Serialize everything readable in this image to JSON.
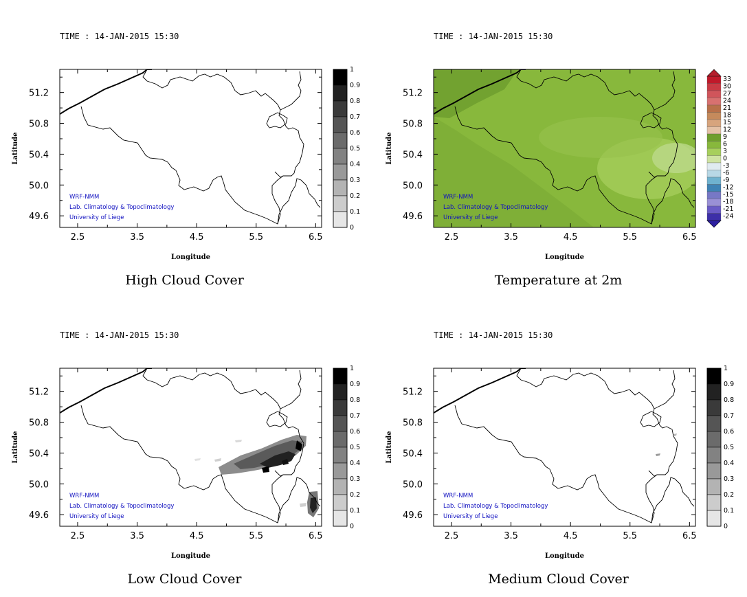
{
  "chart_data": [
    {
      "type": "heatmap",
      "panel": "top-left",
      "time_label": "TIME : 14-JAN-2015 15:30",
      "title": "High Cloud Cover",
      "xlabel": "Longitude",
      "ylabel": "Latitude",
      "xticks": [
        "2.5",
        "3.5",
        "4.5",
        "5.5",
        "6.5"
      ],
      "yticks": [
        "51.2",
        "50.8",
        "50.4",
        "50.0",
        "49.6"
      ],
      "xlim": [
        2.2,
        6.6
      ],
      "ylim": [
        49.45,
        51.5
      ],
      "colorbar": {
        "labels": [
          "1",
          "0.9",
          "0.8",
          "0.7",
          "0.6",
          "0.5",
          "0.4",
          "0.3",
          "0.2",
          "0.1",
          "0"
        ],
        "colors": [
          "#000000",
          "#222222",
          "#3a3a3a",
          "#555555",
          "#6b6b6b",
          "#828282",
          "#999999",
          "#b3b3b3",
          "#cccccc",
          "#e6e6e6"
        ]
      },
      "credits": [
        "WRF-NMM",
        "Lab. Climatology & Topoclimatology",
        "University of Liege"
      ],
      "values": []
    },
    {
      "type": "heatmap",
      "panel": "top-right",
      "time_label": "TIME : 14-JAN-2015 15:30",
      "title": "Temperature at 2m",
      "xlabel": "Longitude",
      "ylabel": "Latitude",
      "xticks": [
        "2.5",
        "3.5",
        "4.5",
        "5.5",
        "6.5"
      ],
      "yticks": [
        "51.2",
        "50.8",
        "50.4",
        "50.0",
        "49.6"
      ],
      "xlim": [
        2.2,
        6.6
      ],
      "ylim": [
        49.45,
        51.5
      ],
      "colorbar": {
        "labels": [
          "33",
          "30",
          "27",
          "24",
          "21",
          "18",
          "15",
          "12",
          "9",
          "6",
          "3",
          "0",
          "-3",
          "-6",
          "-9",
          "-12",
          "-15",
          "-18",
          "-21",
          "-24"
        ],
        "colors": [
          "#c0192a",
          "#c93a44",
          "#d0555b",
          "#d87170",
          "#b8704a",
          "#c58a5c",
          "#d7a47d",
          "#e4c1a6",
          "#6f9e2e",
          "#88b83c",
          "#a7cf5c",
          "#cfe3a2",
          "#e0ebf0",
          "#b8d8e6",
          "#6fb2cf",
          "#3f83b4",
          "#7778c6",
          "#9a90d6",
          "#6a5bc6",
          "#3d2fa8"
        ]
      },
      "credits": [
        "WRF-NMM",
        "Lab. Climatology & Topoclimatology",
        "University of Liege"
      ],
      "field_range_note": "roughly 3 to 9 degrees over the domain"
    },
    {
      "type": "heatmap",
      "panel": "bottom-left",
      "time_label": "TIME : 14-JAN-2015 15:30",
      "title": "Low Cloud Cover",
      "xlabel": "Longitude",
      "ylabel": "Latitude",
      "xticks": [
        "2.5",
        "3.5",
        "4.5",
        "5.5",
        "6.5"
      ],
      "yticks": [
        "51.2",
        "50.8",
        "50.4",
        "50.0",
        "49.6"
      ],
      "xlim": [
        2.2,
        6.6
      ],
      "ylim": [
        49.45,
        51.5
      ],
      "colorbar": {
        "labels": [
          "1",
          "0.9",
          "0.8",
          "0.7",
          "0.6",
          "0.5",
          "0.4",
          "0.3",
          "0.2",
          "0.1",
          "0"
        ],
        "colors": [
          "#000000",
          "#222222",
          "#3a3a3a",
          "#555555",
          "#6b6b6b",
          "#828282",
          "#999999",
          "#b3b3b3",
          "#cccccc",
          "#e6e6e6"
        ]
      },
      "credits": [
        "WRF-NMM",
        "Lab. Climatology & Topoclimatology",
        "University of Liege"
      ]
    },
    {
      "type": "heatmap",
      "panel": "bottom-right",
      "time_label": "TIME : 14-JAN-2015 15:30",
      "title": "Medium Cloud Cover",
      "xlabel": "Longitude",
      "ylabel": "Latitude",
      "xticks": [
        "2.5",
        "3.5",
        "4.5",
        "5.5",
        "6.5"
      ],
      "yticks": [
        "51.2",
        "50.8",
        "50.4",
        "50.0",
        "49.6"
      ],
      "xlim": [
        2.2,
        6.6
      ],
      "ylim": [
        49.45,
        51.5
      ],
      "colorbar": {
        "labels": [
          "1",
          "0.9",
          "0.8",
          "0.7",
          "0.6",
          "0.5",
          "0.4",
          "0.3",
          "0.2",
          "0.1",
          "0"
        ],
        "colors": [
          "#000000",
          "#222222",
          "#3a3a3a",
          "#555555",
          "#6b6b6b",
          "#828282",
          "#999999",
          "#b3b3b3",
          "#cccccc",
          "#e6e6e6"
        ]
      },
      "credits": [
        "WRF-NMM",
        "Lab. Climatology & Topoclimatology",
        "University of Liege"
      ]
    }
  ]
}
